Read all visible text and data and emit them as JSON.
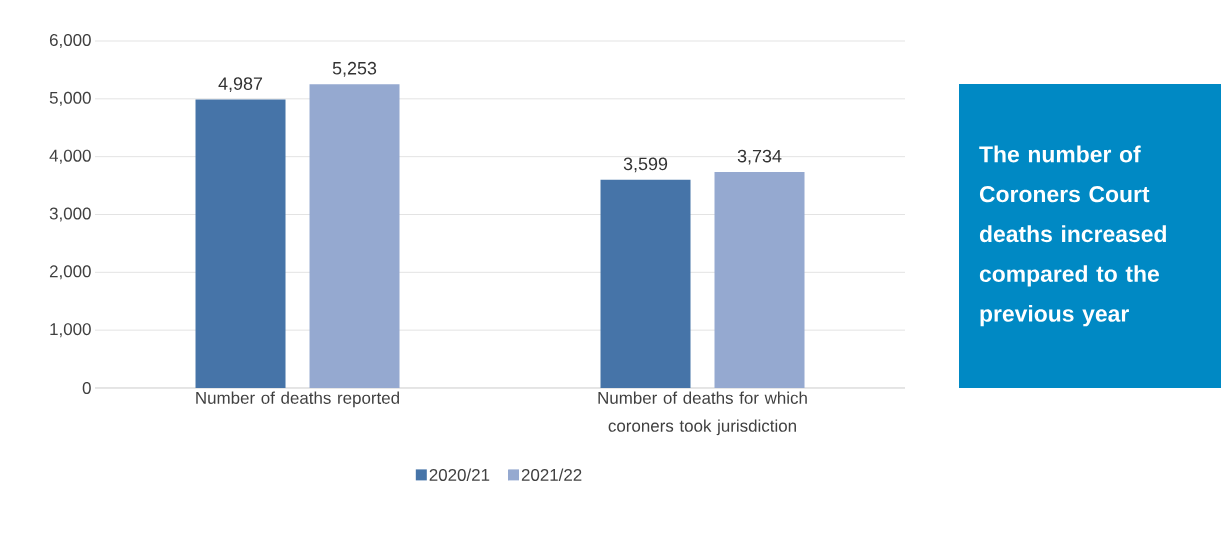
{
  "chart_data": {
    "type": "bar",
    "categories": [
      "Number of deaths reported",
      "Number of deaths for which coroners took jurisdiction"
    ],
    "series": [
      {
        "name": "2020/21",
        "color": "#4674a8",
        "values": [
          4987,
          3599
        ],
        "value_labels": [
          "4,987",
          "3,599"
        ]
      },
      {
        "name": "2021/22",
        "color": "#95a9d0",
        "values": [
          5253,
          3734
        ],
        "value_labels": [
          "5,253",
          "3,734"
        ]
      }
    ],
    "ylim": [
      0,
      6000
    ],
    "yticks": [
      0,
      {
        "value": 1000,
        "label": "1,000"
      },
      {
        "value": 2000,
        "label": "2,000"
      },
      {
        "value": 3000,
        "label": "3,000"
      },
      {
        "value": 4000,
        "label": "4,000"
      },
      {
        "value": 5000,
        "label": "5,000"
      },
      {
        "value": 6000,
        "label": "6,000"
      }
    ],
    "grid": "y",
    "legend": "bottom",
    "annotations": [
      "The number of Coroners Court deaths increased compared to the previous year"
    ]
  }
}
